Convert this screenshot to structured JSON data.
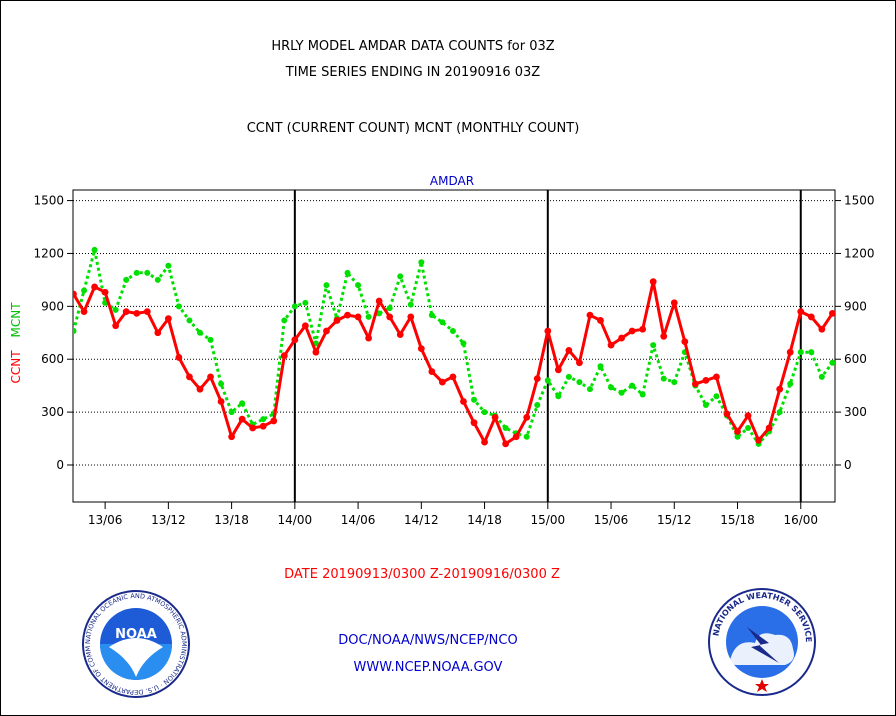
{
  "header": {
    "title_line1": "HRLY MODEL AMDAR DATA COUNTS for 03Z",
    "title_line2": "TIME SERIES ENDING IN 20190916 03Z",
    "subtitle": "CCNT (CURRENT COUNT) MCNT (MONTHLY COUNT)"
  },
  "footer": {
    "date_range": "DATE 20190913/0300 Z-20190916/0300 Z",
    "org_path": "DOC/NOAA/NWS/NCEP/NCO",
    "website": "WWW.NCEP.NOAA.GOV"
  },
  "logos": {
    "noaa_center": "NOAA",
    "noaa_ring": "NATIONAL OCEANIC AND ATMOSPHERIC ADMINISTRATION · U.S. DEPARTMENT OF COMMERCE",
    "nws_ring": "NATIONAL WEATHER SERVICE"
  },
  "colors": {
    "ccnt": "#ff0000",
    "mcnt": "#00e000",
    "panel_label": "#0000cc"
  },
  "chart_data": {
    "type": "line",
    "panel_label": "AMDAR",
    "ylabel_left": [
      "CCNT",
      "MCNT"
    ],
    "ylim": [
      -210,
      1560
    ],
    "yticks": [
      0,
      300,
      600,
      900,
      1200,
      1500
    ],
    "ytick_labels": [
      "0",
      "300",
      "600",
      "900",
      "1200",
      "1500"
    ],
    "xlim": [
      0,
      73
    ],
    "xticks": [
      3,
      9,
      15,
      21,
      27,
      33,
      39,
      45,
      51,
      57,
      63,
      69
    ],
    "xtick_labels": [
      "13/06",
      "13/12",
      "13/18",
      "14/00",
      "14/06",
      "14/12",
      "14/18",
      "15/00",
      "15/06",
      "15/12",
      "15/18",
      "16/00"
    ],
    "day_boundaries": [
      21,
      45,
      69
    ],
    "grid": true,
    "x_unit": "hours since 20190913/0300 Z",
    "series": [
      {
        "name": "CCNT",
        "style": "solid",
        "values": [
          970,
          870,
          1010,
          980,
          790,
          870,
          860,
          870,
          750,
          830,
          610,
          500,
          430,
          500,
          360,
          160,
          260,
          210,
          220,
          250,
          620,
          710,
          790,
          640,
          760,
          820,
          850,
          840,
          720,
          930,
          840,
          740,
          840,
          660,
          530,
          470,
          500,
          360,
          240,
          130,
          270,
          120,
          160,
          270,
          490,
          760,
          540,
          650,
          580,
          850,
          820,
          680,
          720,
          760,
          770,
          1040,
          730,
          920,
          700,
          460,
          480,
          500,
          290,
          190,
          280,
          140,
          210,
          430,
          640,
          870,
          840,
          770,
          860
        ]
      },
      {
        "name": "MCNT",
        "style": "dotted",
        "values": [
          760,
          990,
          1220,
          920,
          880,
          1050,
          1090,
          1090,
          1050,
          1130,
          900,
          820,
          750,
          710,
          460,
          300,
          350,
          230,
          260,
          290,
          820,
          900,
          920,
          690,
          1020,
          830,
          1090,
          1020,
          840,
          860,
          890,
          1070,
          910,
          1150,
          850,
          810,
          760,
          690,
          370,
          300,
          280,
          210,
          180,
          160,
          340,
          480,
          390,
          500,
          470,
          430,
          560,
          440,
          410,
          450,
          400,
          680,
          490,
          470,
          640,
          450,
          340,
          390,
          280,
          160,
          210,
          120,
          190,
          300,
          460,
          640,
          640,
          500,
          580
        ]
      }
    ]
  }
}
